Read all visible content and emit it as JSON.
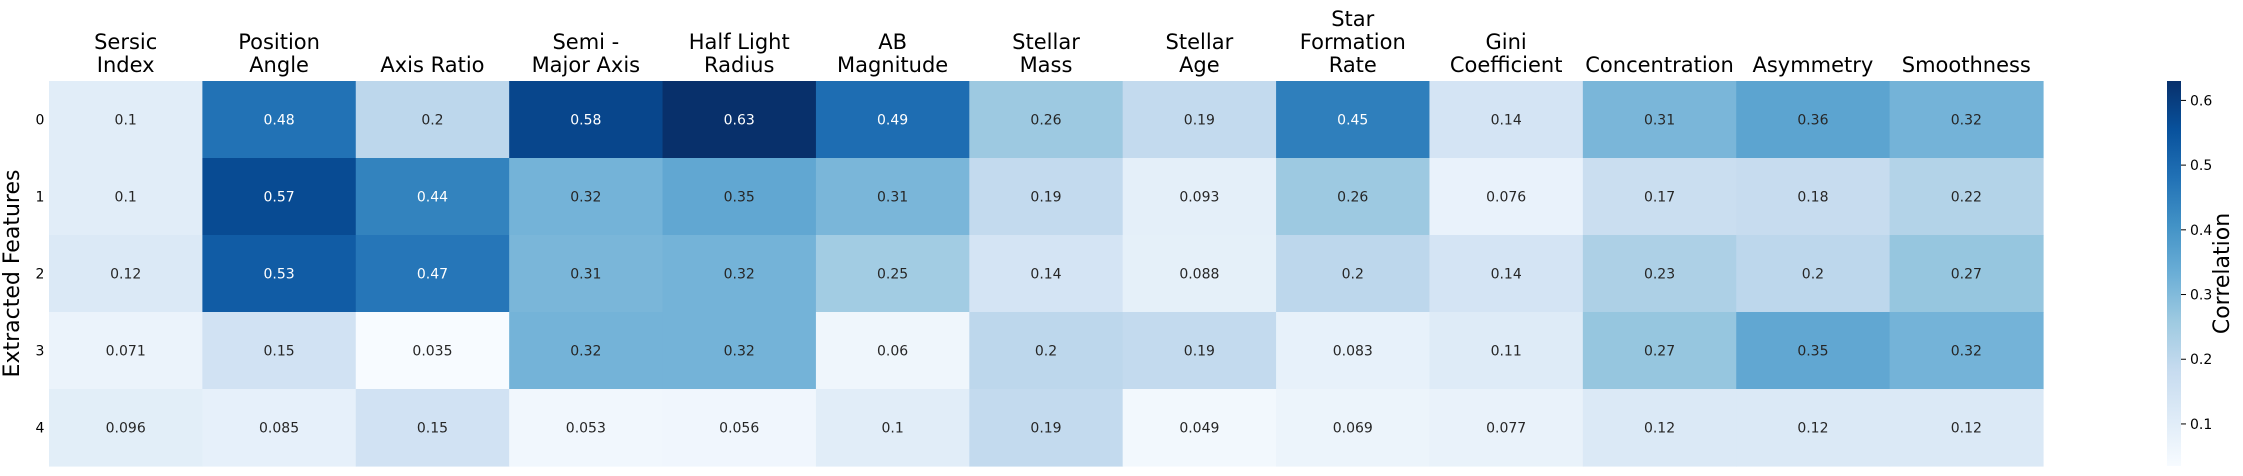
{
  "chart_data": {
    "type": "heatmap",
    "columns": [
      [
        "Sersic",
        "Index"
      ],
      [
        "Position",
        "Angle"
      ],
      [
        "Axis Ratio"
      ],
      [
        "Semi -",
        "Major Axis"
      ],
      [
        "Half Light",
        "Radius"
      ],
      [
        "AB",
        "Magnitude"
      ],
      [
        "Stellar",
        "Mass"
      ],
      [
        "Stellar",
        "Age"
      ],
      [
        "Star",
        "Formation",
        "Rate"
      ],
      [
        "Gini",
        "Coefficient"
      ],
      [
        "Concentration"
      ],
      [
        "Asymmetry"
      ],
      [
        "Smoothness"
      ]
    ],
    "rows": [
      "0",
      "1",
      "2",
      "3",
      "4"
    ],
    "values": [
      [
        0.1,
        0.48,
        0.2,
        0.58,
        0.63,
        0.49,
        0.26,
        0.19,
        0.45,
        0.14,
        0.31,
        0.36,
        0.32
      ],
      [
        0.1,
        0.57,
        0.44,
        0.32,
        0.35,
        0.31,
        0.19,
        0.093,
        0.26,
        0.076,
        0.17,
        0.18,
        0.22
      ],
      [
        0.12,
        0.53,
        0.47,
        0.31,
        0.32,
        0.25,
        0.14,
        0.088,
        0.2,
        0.14,
        0.23,
        0.2,
        0.27
      ],
      [
        0.071,
        0.15,
        0.035,
        0.32,
        0.32,
        0.06,
        0.2,
        0.19,
        0.083,
        0.11,
        0.27,
        0.35,
        0.32
      ],
      [
        0.096,
        0.085,
        0.15,
        0.053,
        0.056,
        0.1,
        0.19,
        0.049,
        0.069,
        0.077,
        0.12,
        0.12,
        0.12
      ]
    ],
    "ylabel": "Extracted Features",
    "colorbar_label": "Correlation",
    "colorbar_ticks": [
      "0.1",
      "0.2",
      "0.3",
      "0.4",
      "0.5",
      "0.6"
    ],
    "vmin": 0.035,
    "vmax": 0.63,
    "colormap": "Blues",
    "colormap_stops": [
      "#f7fbff",
      "#deebf7",
      "#c6dbef",
      "#9ecae1",
      "#6baed6",
      "#4292c6",
      "#2171b5",
      "#08519c",
      "#08306b"
    ]
  }
}
